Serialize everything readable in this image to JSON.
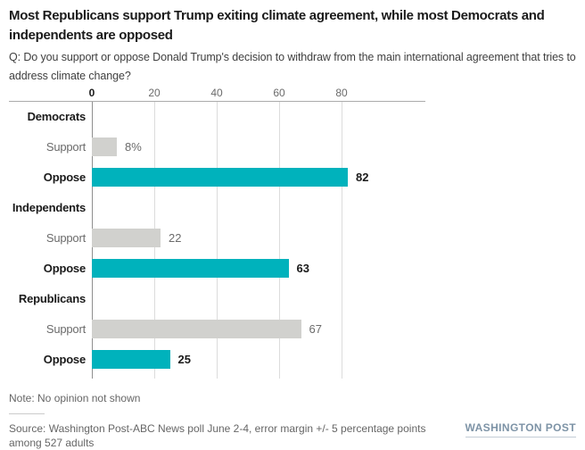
{
  "header": {
    "title": "Most Republicans support Trump exiting climate agreement, while most Democrats and independents are opposed",
    "question": "Q: Do you support or oppose Donald Trump's decision to withdraw from the main international agreement that tries to address climate change?"
  },
  "chart_data": {
    "type": "bar",
    "orientation": "horizontal",
    "title": "Most Republicans support Trump exiting climate agreement, while most Democrats and independents are opposed",
    "categories": [
      "Democrats",
      "Independents",
      "Republicans"
    ],
    "series": [
      {
        "name": "Support",
        "values": [
          8,
          22,
          67
        ],
        "labels": [
          "8%",
          "22",
          "67"
        ],
        "color": "#d1d1ce"
      },
      {
        "name": "Oppose",
        "values": [
          82,
          63,
          25
        ],
        "labels": [
          "82",
          "63",
          "25"
        ],
        "color": "#00b2bc"
      }
    ],
    "axis": {
      "ticks": [
        0,
        20,
        40,
        60,
        80
      ],
      "xlim": [
        0,
        107
      ]
    },
    "grid": true,
    "legend_position": "none"
  },
  "footer": {
    "note": "Note: No opinion not shown",
    "source": "Source: Washington Post-ABC News poll June 2-4, error margin +/- 5 percentage points among 527 adults",
    "brand": "WASHINGTON POST"
  }
}
